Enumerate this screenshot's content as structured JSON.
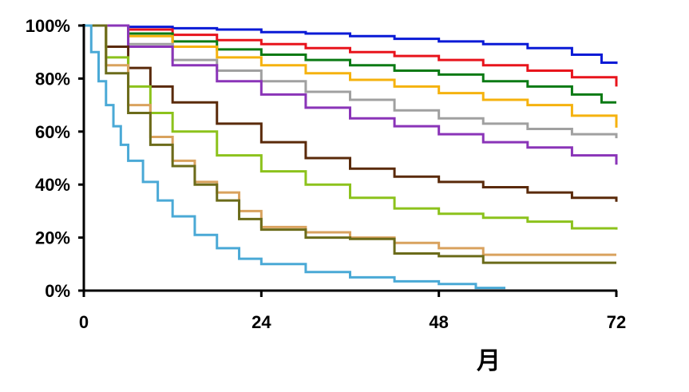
{
  "chart_data": {
    "type": "line",
    "step": true,
    "xlabel": "月",
    "ylabel": "",
    "xlim": [
      0,
      72
    ],
    "ylim": [
      0,
      100
    ],
    "x_ticks": [
      0,
      24,
      48,
      72
    ],
    "x_tick_labels": [
      "0",
      "24",
      "48",
      "72"
    ],
    "y_ticks": [
      0,
      20,
      40,
      60,
      80,
      100
    ],
    "y_tick_labels": [
      "0%",
      "20%",
      "40%",
      "60%",
      "80%",
      "100%"
    ],
    "grid": false,
    "legend": "none",
    "series": [
      {
        "color": "#0a1ad6",
        "x": [
          0,
          6,
          12,
          18,
          24,
          30,
          36,
          42,
          48,
          54,
          60,
          66,
          70,
          72
        ],
        "y": [
          100,
          99.5,
          99,
          98.5,
          97.5,
          97,
          96,
          95,
          94,
          93,
          91.5,
          89,
          86,
          85.5
        ]
      },
      {
        "color": "#e8141c",
        "x": [
          0,
          6,
          12,
          18,
          24,
          30,
          36,
          42,
          48,
          54,
          60,
          66,
          72
        ],
        "y": [
          100,
          98.5,
          96.5,
          94.5,
          93,
          91.5,
          90,
          88.5,
          87,
          85,
          83,
          80.5,
          77
        ]
      },
      {
        "color": "#0b7a14",
        "x": [
          0,
          6,
          12,
          18,
          24,
          30,
          36,
          42,
          48,
          54,
          60,
          66,
          70,
          72
        ],
        "y": [
          100,
          97,
          94,
          91,
          89,
          87,
          85,
          83,
          81.5,
          79,
          77,
          74,
          71,
          71
        ]
      },
      {
        "color": "#f5b20e",
        "x": [
          0,
          6,
          12,
          18,
          24,
          30,
          36,
          42,
          48,
          54,
          60,
          66,
          72
        ],
        "y": [
          100,
          96,
          92,
          88,
          85,
          82,
          79.5,
          77,
          74.5,
          72,
          70,
          66,
          61.5
        ]
      },
      {
        "color": "#a0a0a0",
        "x": [
          0,
          6,
          12,
          18,
          24,
          30,
          36,
          42,
          48,
          54,
          60,
          66,
          72
        ],
        "y": [
          100,
          93,
          87,
          83,
          79,
          75,
          72,
          68,
          65,
          63,
          61,
          59,
          57.5
        ]
      },
      {
        "color": "#8a34b8",
        "x": [
          0,
          6,
          12,
          18,
          24,
          30,
          36,
          42,
          48,
          54,
          60,
          66,
          72
        ],
        "y": [
          100,
          92,
          85,
          79,
          74,
          69,
          65,
          62,
          59,
          56,
          54,
          51,
          47.5
        ]
      },
      {
        "color": "#5a2a0a",
        "x": [
          0,
          3,
          6,
          9,
          12,
          18,
          24,
          30,
          36,
          42,
          48,
          54,
          60,
          66,
          72
        ],
        "y": [
          100,
          92,
          84,
          77,
          71,
          63,
          56,
          50,
          46,
          43,
          41,
          39,
          37,
          35,
          33.5
        ]
      },
      {
        "color": "#8cc21c",
        "x": [
          0,
          3,
          6,
          9,
          12,
          18,
          24,
          30,
          36,
          42,
          48,
          54,
          60,
          66,
          72
        ],
        "y": [
          100,
          88,
          77,
          67,
          60,
          51,
          45,
          40,
          35,
          31,
          29,
          27.5,
          26,
          23.5,
          23
        ]
      },
      {
        "color": "#d9a25e",
        "x": [
          0,
          3,
          6,
          9,
          12,
          15,
          18,
          21,
          24,
          30,
          36,
          42,
          48,
          54,
          60,
          66,
          72
        ],
        "y": [
          100,
          85,
          70,
          58,
          49,
          41,
          37,
          30,
          24,
          22,
          20,
          18,
          16,
          13.5,
          13.5,
          13.5,
          13.5
        ]
      },
      {
        "color": "#6b6b1a",
        "x": [
          0,
          3,
          6,
          9,
          12,
          15,
          18,
          21,
          24,
          30,
          36,
          42,
          48,
          54,
          60,
          66,
          72
        ],
        "y": [
          100,
          82,
          67,
          55,
          47,
          40,
          34,
          27,
          23,
          20,
          19.5,
          14,
          13,
          10.5,
          10.5,
          10.5,
          10.5
        ]
      },
      {
        "color": "#4aa9d6",
        "x": [
          0,
          1,
          2,
          3,
          4,
          5,
          6,
          8,
          10,
          12,
          15,
          18,
          21,
          24,
          30,
          36,
          42,
          48,
          53,
          57
        ],
        "y": [
          100,
          90,
          79,
          70,
          62,
          55,
          49,
          41,
          34,
          28,
          21,
          16,
          12,
          10,
          7,
          5,
          3.5,
          2.5,
          1,
          1
        ]
      }
    ]
  }
}
